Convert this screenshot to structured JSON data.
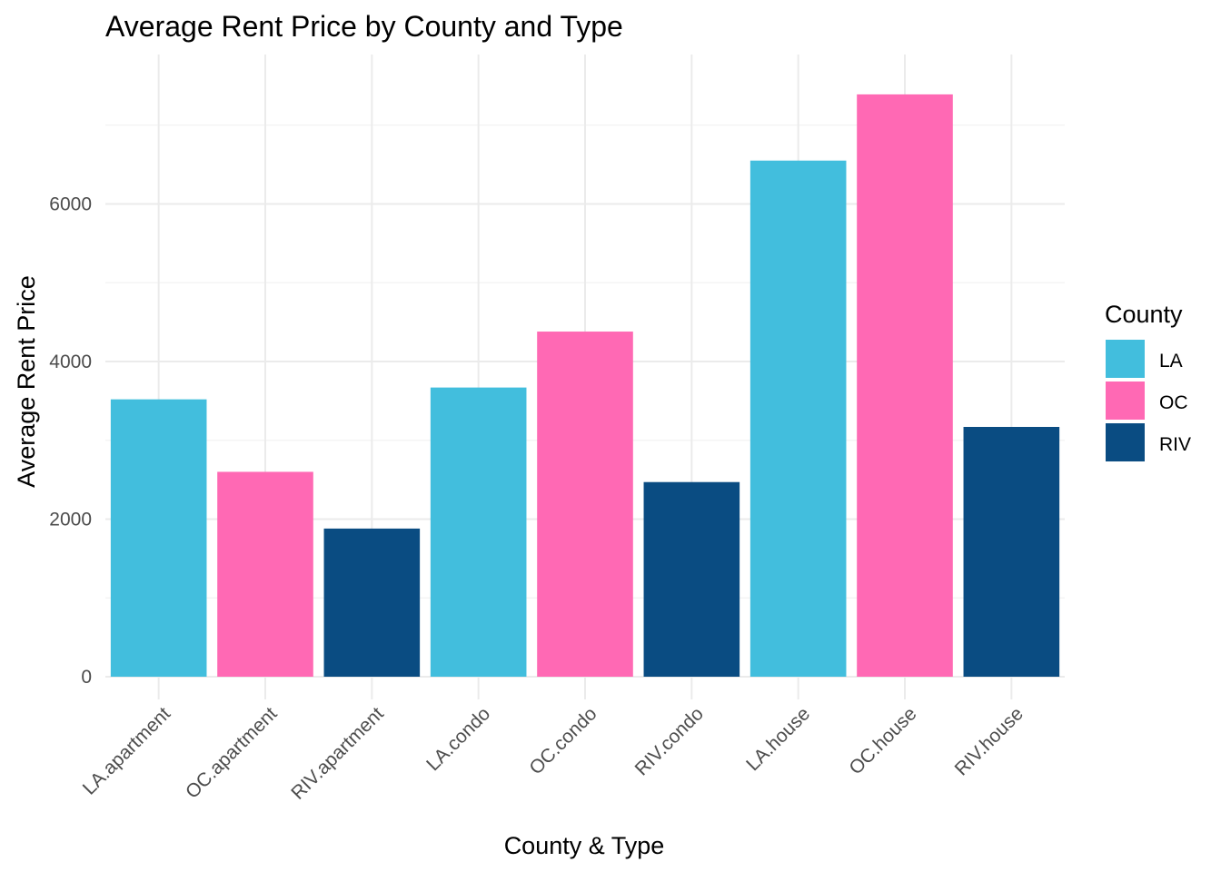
{
  "chart_data": {
    "type": "bar",
    "title": "Average Rent Price by County and Type",
    "xlabel": "County & Type",
    "ylabel": "Average Rent Price",
    "categories": [
      "LA.apartment",
      "OC.apartment",
      "RIV.apartment",
      "LA.condo",
      "OC.condo",
      "RIV.condo",
      "LA.house",
      "OC.house",
      "RIV.house"
    ],
    "values": [
      3520,
      2600,
      1880,
      3670,
      4380,
      2470,
      6550,
      7390,
      3170
    ],
    "fill_groups": [
      "LA",
      "OC",
      "RIV",
      "LA",
      "OC",
      "RIV",
      "LA",
      "OC",
      "RIV"
    ],
    "ylim": [
      0,
      8000
    ],
    "y_ticks": [
      0,
      2000,
      4000,
      6000
    ],
    "grid": true,
    "legend": {
      "title": "County",
      "position": "right",
      "entries": [
        {
          "label": "LA",
          "color": "#42BEDD"
        },
        {
          "label": "OC",
          "color": "#FF69B4"
        },
        {
          "label": "RIV",
          "color": "#0A4C82"
        }
      ]
    }
  }
}
